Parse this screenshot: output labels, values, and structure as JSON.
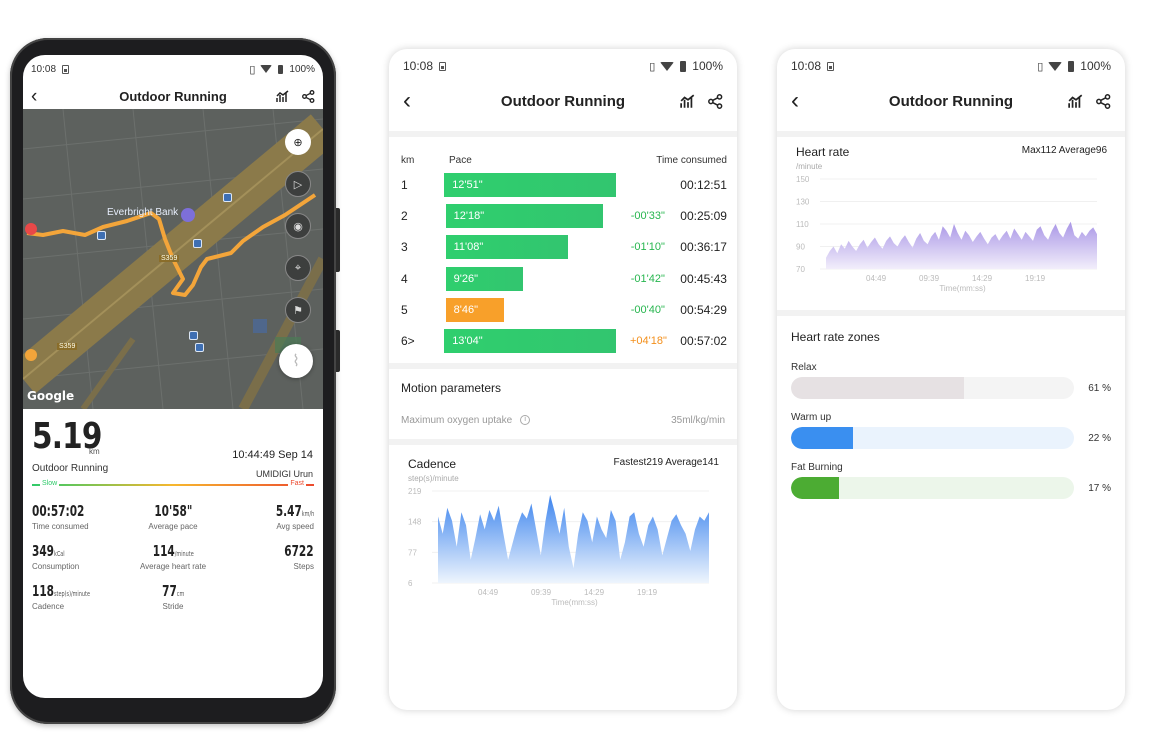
{
  "status": {
    "time": "10:08",
    "battery": "100%"
  },
  "header": {
    "title": "Outdoor Running"
  },
  "phone1": {
    "map": {
      "poi": "Everbright Bank",
      "road1": "S359",
      "road2": "S359",
      "google": "Google"
    },
    "distance": "5.19",
    "distance_unit": "km",
    "date": "10:44:49 Sep 14",
    "activity": "Outdoor Running",
    "device": "UMIDIGI Urun",
    "slow_label": "Slow",
    "fast_label": "Fast",
    "stats": [
      {
        "value": "00:57:02",
        "unit": "",
        "label": "Time consumed"
      },
      {
        "value": "10'58\"",
        "unit": "",
        "label": "Average pace"
      },
      {
        "value": "5.47",
        "unit": "km/h",
        "label": "Avg speed"
      },
      {
        "value": "349",
        "unit": "kCal",
        "label": "Consumption"
      },
      {
        "value": "114",
        "unit": "/minute",
        "label": "Average heart rate"
      },
      {
        "value": "6722",
        "unit": "",
        "label": "Steps"
      },
      {
        "value": "118",
        "unit": "step(s)/minute",
        "label": "Cadence"
      },
      {
        "value": "77",
        "unit": "cm",
        "label": "Stride"
      }
    ]
  },
  "phone2": {
    "pace_headers": {
      "km": "km",
      "pace": "Pace",
      "time": "Time consumed"
    },
    "pace_rows": [
      {
        "km": "1",
        "pace": "12'51\"",
        "diff": "",
        "time": "00:12:51",
        "fraction": 1.0,
        "color": "green"
      },
      {
        "km": "2",
        "pace": "12'18\"",
        "diff": "-00'33\"",
        "time": "00:25:09",
        "fraction": 0.912,
        "color": "green"
      },
      {
        "km": "3",
        "pace": "11'08\"",
        "diff": "-01'10\"",
        "time": "00:36:17",
        "fraction": 0.71,
        "color": "green"
      },
      {
        "km": "4",
        "pace": "9'26\"",
        "diff": "-01'42\"",
        "time": "00:45:43",
        "fraction": 0.445,
        "color": "green"
      },
      {
        "km": "5",
        "pace": "8'46\"",
        "diff": "-00'40\"",
        "time": "00:54:29",
        "fraction": 0.335,
        "color": "orange"
      },
      {
        "km": "6>",
        "pace": "13'04\"",
        "diff": "+04'18\"",
        "time": "00:57:02",
        "fraction": 1.0,
        "color": "green"
      }
    ],
    "motion": {
      "title": "Motion parameters",
      "label": "Maximum oxygen uptake",
      "value": "35ml/kg/min",
      "info": "i"
    },
    "cadence": {
      "title": "Cadence",
      "stats": "Fastest219  Average141",
      "unit": "step(s)/minute",
      "xlabel": "Time(mm:ss)"
    }
  },
  "phone3": {
    "heart": {
      "title": "Heart rate",
      "stats": "Max112  Average96",
      "unit": "/minute",
      "xlabel": "Time(mm:ss)"
    },
    "zones_title": "Heart rate zones",
    "zones": [
      {
        "name": "Relax",
        "pct": "61 %",
        "value": 0.61,
        "fill": "#e6e1e3",
        "track": "#f4f4f4"
      },
      {
        "name": "Warm up",
        "pct": "22 %",
        "value": 0.22,
        "fill": "#3a8ff0",
        "track": "#eaf3fd"
      },
      {
        "name": "Fat Burning",
        "pct": "17 %",
        "value": 0.17,
        "fill": "#4cac33",
        "track": "#ecf6ea"
      }
    ]
  },
  "chart_data": [
    {
      "type": "area",
      "title": "Cadence",
      "ylabel": "step(s)/minute",
      "xlabel": "Time(mm:ss)",
      "yticks": [
        "219",
        "148",
        "77",
        "6"
      ],
      "xticks": [
        "04:49",
        "09:39",
        "14:29",
        "19:19"
      ],
      "ylim": [
        6,
        219
      ],
      "series": [
        {
          "values": [
            160,
            120,
            180,
            150,
            90,
            170,
            140,
            60,
            110,
            165,
            130,
            175,
            150,
            185,
            120,
            60,
            100,
            140,
            170,
            155,
            190,
            130,
            70,
            150,
            210,
            170,
            120,
            180,
            90,
            40,
            120,
            170,
            150,
            100,
            160,
            130,
            110,
            175,
            150,
            60,
            100,
            160,
            170,
            120,
            90,
            140,
            160,
            130,
            70,
            110,
            150,
            165,
            140,
            120,
            80,
            130,
            160,
            150,
            170
          ]
        }
      ]
    },
    {
      "type": "area",
      "title": "Heart rate",
      "ylabel": "/minute",
      "xlabel": "Time(mm:ss)",
      "yticks": [
        "150",
        "130",
        "110",
        "90",
        "70"
      ],
      "xticks": [
        "04:49",
        "09:39",
        "14:29",
        "19:19"
      ],
      "ylim": [
        70,
        150
      ],
      "series": [
        {
          "values": [
            80,
            86,
            90,
            84,
            92,
            88,
            95,
            90,
            86,
            92,
            96,
            89,
            94,
            98,
            92,
            88,
            95,
            99,
            93,
            90,
            96,
            100,
            94,
            89,
            97,
            102,
            95,
            92,
            99,
            103,
            96,
            108,
            104,
            98,
            110,
            102,
            96,
            104,
            100,
            94,
            99,
            103,
            97,
            92,
            98,
            101,
            95,
            100,
            104,
            97,
            106,
            101,
            96,
            103,
            99,
            95,
            105,
            108,
            100,
            96,
            104,
            110,
            102,
            98,
            106,
            112,
            100,
            97,
            103,
            99,
            104,
            107,
            101
          ]
        }
      ]
    }
  ]
}
